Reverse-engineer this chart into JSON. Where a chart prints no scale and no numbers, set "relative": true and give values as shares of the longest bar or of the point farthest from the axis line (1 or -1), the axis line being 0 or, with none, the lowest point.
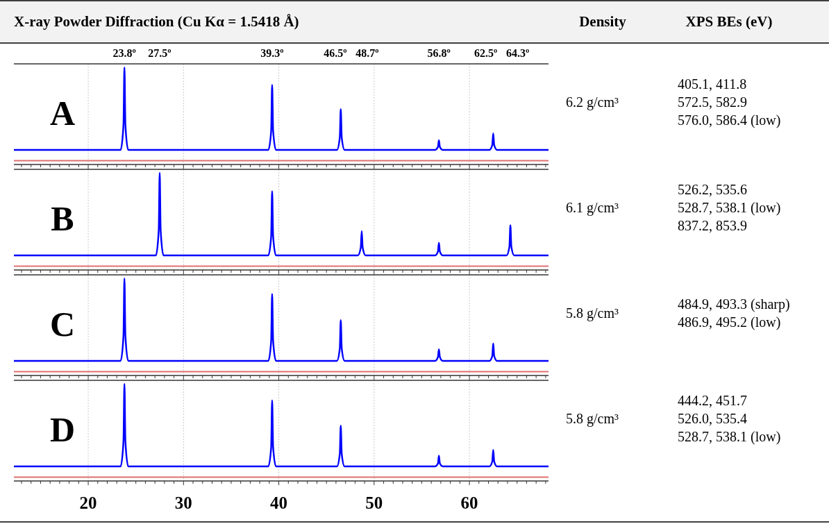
{
  "chart_data": [
    {
      "type": "other",
      "title": "X-ray Powder Diffraction (Cu Kα = 1.5418 Å)",
      "annotations": [
        "Density",
        "XPS BEs (eV)"
      ]
    },
    {
      "type": "line",
      "title": "A",
      "relative": true,
      "xlim": [
        12.2,
        68.3
      ],
      "xticks": [
        {
          "value": 13,
          "label": null
        },
        {
          "value": 14,
          "label": null
        },
        {
          "value": 15,
          "label": null
        },
        {
          "value": 16,
          "label": null
        },
        {
          "value": 17,
          "label": null
        },
        {
          "value": 18,
          "label": null
        },
        {
          "value": 19,
          "label": null
        },
        20,
        {
          "value": 21,
          "label": null
        },
        {
          "value": 22,
          "label": null
        },
        {
          "value": 23,
          "label": null
        },
        {
          "value": 24,
          "label": null
        },
        {
          "value": 25,
          "label": null
        },
        {
          "value": 26,
          "label": null
        },
        {
          "value": 27,
          "label": null
        },
        {
          "value": 28,
          "label": null
        },
        {
          "value": 29,
          "label": null
        },
        30,
        {
          "value": 31,
          "label": null
        },
        {
          "value": 32,
          "label": null
        },
        {
          "value": 33,
          "label": null
        },
        {
          "value": 34,
          "label": null
        },
        {
          "value": 35,
          "label": null
        },
        {
          "value": 36,
          "label": null
        },
        {
          "value": 37,
          "label": null
        },
        {
          "value": 38,
          "label": null
        },
        {
          "value": 39,
          "label": null
        },
        40,
        {
          "value": 41,
          "label": null
        },
        {
          "value": 42,
          "label": null
        },
        {
          "value": 43,
          "label": null
        },
        {
          "value": 44,
          "label": null
        },
        {
          "value": 45,
          "label": null
        },
        {
          "value": 46,
          "label": null
        },
        {
          "value": 47,
          "label": null
        },
        {
          "value": 48,
          "label": null
        },
        {
          "value": 49,
          "label": null
        },
        50,
        {
          "value": 51,
          "label": null
        },
        {
          "value": 52,
          "label": null
        },
        {
          "value": 53,
          "label": null
        },
        {
          "value": 54,
          "label": null
        },
        {
          "value": 55,
          "label": null
        },
        {
          "value": 56,
          "label": null
        },
        {
          "value": 57,
          "label": null
        },
        {
          "value": 58,
          "label": null
        },
        {
          "value": 59,
          "label": null
        },
        60,
        {
          "value": 61,
          "label": null
        },
        {
          "value": 62,
          "label": null
        },
        {
          "value": 63,
          "label": null
        },
        {
          "value": 64,
          "label": null
        },
        {
          "value": 65,
          "label": null
        },
        {
          "value": 66,
          "label": null
        },
        {
          "value": 67,
          "label": null
        },
        {
          "value": 68,
          "label": null
        }
      ],
      "tick_labels": false,
      "grid": "x",
      "x": [
        12.2,
        23.4,
        23.7,
        23.8,
        23.9,
        24.2,
        38.9,
        39.2,
        39.3,
        39.4,
        39.7,
        46.1,
        46.4,
        46.5,
        46.6,
        46.9,
        56.4,
        56.7,
        56.8,
        56.9,
        57.2,
        62.1,
        62.4,
        62.5,
        62.6,
        62.9,
        68.3
      ],
      "series": [
        {
          "color": "#0000ff",
          "values": [
            0.15,
            0.15,
            0.41,
            1,
            0.41,
            0.15,
            0.15,
            0.35,
            0.82,
            0.35,
            0.15,
            0.15,
            0.28,
            0.57,
            0.28,
            0.15,
            0.15,
            0.18,
            0.25,
            0.18,
            0.15,
            0.15,
            0.2,
            0.32,
            0.2,
            0.15,
            0.15
          ]
        }
      ],
      "ref_lines": [
        {
          "axis": "y",
          "value": 0.04,
          "color": "#e07070"
        }
      ],
      "annotations": [
        "23.8º",
        "27.5º",
        "39.3º",
        "46.5º",
        "48.7º",
        "56.8º",
        "62.5º",
        "64.3º",
        "6.2 g/cm³",
        "405.1, 411.8",
        "572.5, 582.9",
        "576.0, 586.4 (low)"
      ]
    },
    {
      "type": "line",
      "title": "B",
      "relative": true,
      "xlim": [
        12.2,
        68.3
      ],
      "xticks": [
        {
          "value": 13,
          "label": null
        },
        {
          "value": 14,
          "label": null
        },
        {
          "value": 15,
          "label": null
        },
        {
          "value": 16,
          "label": null
        },
        {
          "value": 17,
          "label": null
        },
        {
          "value": 18,
          "label": null
        },
        {
          "value": 19,
          "label": null
        },
        20,
        {
          "value": 21,
          "label": null
        },
        {
          "value": 22,
          "label": null
        },
        {
          "value": 23,
          "label": null
        },
        {
          "value": 24,
          "label": null
        },
        {
          "value": 25,
          "label": null
        },
        {
          "value": 26,
          "label": null
        },
        {
          "value": 27,
          "label": null
        },
        {
          "value": 28,
          "label": null
        },
        {
          "value": 29,
          "label": null
        },
        30,
        {
          "value": 31,
          "label": null
        },
        {
          "value": 32,
          "label": null
        },
        {
          "value": 33,
          "label": null
        },
        {
          "value": 34,
          "label": null
        },
        {
          "value": 35,
          "label": null
        },
        {
          "value": 36,
          "label": null
        },
        {
          "value": 37,
          "label": null
        },
        {
          "value": 38,
          "label": null
        },
        {
          "value": 39,
          "label": null
        },
        40,
        {
          "value": 41,
          "label": null
        },
        {
          "value": 42,
          "label": null
        },
        {
          "value": 43,
          "label": null
        },
        {
          "value": 44,
          "label": null
        },
        {
          "value": 45,
          "label": null
        },
        {
          "value": 46,
          "label": null
        },
        {
          "value": 47,
          "label": null
        },
        {
          "value": 48,
          "label": null
        },
        {
          "value": 49,
          "label": null
        },
        50,
        {
          "value": 51,
          "label": null
        },
        {
          "value": 52,
          "label": null
        },
        {
          "value": 53,
          "label": null
        },
        {
          "value": 54,
          "label": null
        },
        {
          "value": 55,
          "label": null
        },
        {
          "value": 56,
          "label": null
        },
        {
          "value": 57,
          "label": null
        },
        {
          "value": 58,
          "label": null
        },
        {
          "value": 59,
          "label": null
        },
        60,
        {
          "value": 61,
          "label": null
        },
        {
          "value": 62,
          "label": null
        },
        {
          "value": 63,
          "label": null
        },
        {
          "value": 64,
          "label": null
        },
        {
          "value": 65,
          "label": null
        },
        {
          "value": 66,
          "label": null
        },
        {
          "value": 67,
          "label": null
        },
        {
          "value": 68,
          "label": null
        }
      ],
      "tick_labels": false,
      "grid": "x",
      "x": [
        12.2,
        27.1,
        27.4,
        27.5,
        27.6,
        27.9,
        38.9,
        39.2,
        39.3,
        39.4,
        39.7,
        48.3,
        48.6,
        48.7,
        48.8,
        49.1,
        56.4,
        56.7,
        56.8,
        56.9,
        57.2,
        63.9,
        64.2,
        64.3,
        64.4,
        64.7,
        68.3
      ],
      "series": [
        {
          "color": "#0000ff",
          "values": [
            0.15,
            0.15,
            0.41,
            1,
            0.41,
            0.15,
            0.15,
            0.35,
            0.81,
            0.35,
            0.15,
            0.15,
            0.23,
            0.4,
            0.23,
            0.15,
            0.15,
            0.19,
            0.28,
            0.19,
            0.15,
            0.15,
            0.24,
            0.46,
            0.24,
            0.15,
            0.15
          ]
        }
      ],
      "ref_lines": [
        {
          "axis": "y",
          "value": 0.04,
          "color": "#e07070"
        }
      ],
      "annotations": [
        "6.1 g/cm³",
        "526.2, 535.6",
        "528.7, 538.1 (low)",
        "837.2, 853.9"
      ]
    },
    {
      "type": "line",
      "title": "C",
      "relative": true,
      "xlim": [
        12.2,
        68.3
      ],
      "xticks": [
        {
          "value": 13,
          "label": null
        },
        {
          "value": 14,
          "label": null
        },
        {
          "value": 15,
          "label": null
        },
        {
          "value": 16,
          "label": null
        },
        {
          "value": 17,
          "label": null
        },
        {
          "value": 18,
          "label": null
        },
        {
          "value": 19,
          "label": null
        },
        20,
        {
          "value": 21,
          "label": null
        },
        {
          "value": 22,
          "label": null
        },
        {
          "value": 23,
          "label": null
        },
        {
          "value": 24,
          "label": null
        },
        {
          "value": 25,
          "label": null
        },
        {
          "value": 26,
          "label": null
        },
        {
          "value": 27,
          "label": null
        },
        {
          "value": 28,
          "label": null
        },
        {
          "value": 29,
          "label": null
        },
        30,
        {
          "value": 31,
          "label": null
        },
        {
          "value": 32,
          "label": null
        },
        {
          "value": 33,
          "label": null
        },
        {
          "value": 34,
          "label": null
        },
        {
          "value": 35,
          "label": null
        },
        {
          "value": 36,
          "label": null
        },
        {
          "value": 37,
          "label": null
        },
        {
          "value": 38,
          "label": null
        },
        {
          "value": 39,
          "label": null
        },
        40,
        {
          "value": 41,
          "label": null
        },
        {
          "value": 42,
          "label": null
        },
        {
          "value": 43,
          "label": null
        },
        {
          "value": 44,
          "label": null
        },
        {
          "value": 45,
          "label": null
        },
        {
          "value": 46,
          "label": null
        },
        {
          "value": 47,
          "label": null
        },
        {
          "value": 48,
          "label": null
        },
        {
          "value": 49,
          "label": null
        },
        50,
        {
          "value": 51,
          "label": null
        },
        {
          "value": 52,
          "label": null
        },
        {
          "value": 53,
          "label": null
        },
        {
          "value": 54,
          "label": null
        },
        {
          "value": 55,
          "label": null
        },
        {
          "value": 56,
          "label": null
        },
        {
          "value": 57,
          "label": null
        },
        {
          "value": 58,
          "label": null
        },
        {
          "value": 59,
          "label": null
        },
        60,
        {
          "value": 61,
          "label": null
        },
        {
          "value": 62,
          "label": null
        },
        {
          "value": 63,
          "label": null
        },
        {
          "value": 64,
          "label": null
        },
        {
          "value": 65,
          "label": null
        },
        {
          "value": 66,
          "label": null
        },
        {
          "value": 67,
          "label": null
        },
        {
          "value": 68,
          "label": null
        }
      ],
      "tick_labels": false,
      "grid": "x",
      "x": [
        12.2,
        23.4,
        23.7,
        23.8,
        23.9,
        24.2,
        38.9,
        39.2,
        39.3,
        39.4,
        39.7,
        46.1,
        46.4,
        46.5,
        46.6,
        46.9,
        56.4,
        56.7,
        56.8,
        56.9,
        57.2,
        62.1,
        62.4,
        62.5,
        62.6,
        62.9,
        68.3
      ],
      "series": [
        {
          "color": "#0000ff",
          "values": [
            0.15,
            0.15,
            0.41,
            1,
            0.41,
            0.15,
            0.15,
            0.36,
            0.84,
            0.36,
            0.15,
            0.15,
            0.28,
            0.57,
            0.28,
            0.15,
            0.15,
            0.19,
            0.27,
            0.19,
            0.15,
            0.15,
            0.2,
            0.33,
            0.2,
            0.15,
            0.15
          ]
        }
      ],
      "ref_lines": [
        {
          "axis": "y",
          "value": 0.04,
          "color": "#e07070"
        }
      ],
      "annotations": [
        "5.8 g/cm³",
        "484.9, 493.3 (sharp)",
        "486.9, 495.2 (low)"
      ]
    },
    {
      "type": "line",
      "title": "D",
      "relative": true,
      "xlim": [
        12.2,
        68.3
      ],
      "xticks": [
        {
          "value": 13,
          "label": null
        },
        {
          "value": 14,
          "label": null
        },
        {
          "value": 15,
          "label": null
        },
        {
          "value": 16,
          "label": null
        },
        {
          "value": 17,
          "label": null
        },
        {
          "value": 18,
          "label": null
        },
        {
          "value": 19,
          "label": null
        },
        20,
        {
          "value": 21,
          "label": null
        },
        {
          "value": 22,
          "label": null
        },
        {
          "value": 23,
          "label": null
        },
        {
          "value": 24,
          "label": null
        },
        {
          "value": 25,
          "label": null
        },
        {
          "value": 26,
          "label": null
        },
        {
          "value": 27,
          "label": null
        },
        {
          "value": 28,
          "label": null
        },
        {
          "value": 29,
          "label": null
        },
        30,
        {
          "value": 31,
          "label": null
        },
        {
          "value": 32,
          "label": null
        },
        {
          "value": 33,
          "label": null
        },
        {
          "value": 34,
          "label": null
        },
        {
          "value": 35,
          "label": null
        },
        {
          "value": 36,
          "label": null
        },
        {
          "value": 37,
          "label": null
        },
        {
          "value": 38,
          "label": null
        },
        {
          "value": 39,
          "label": null
        },
        40,
        {
          "value": 41,
          "label": null
        },
        {
          "value": 42,
          "label": null
        },
        {
          "value": 43,
          "label": null
        },
        {
          "value": 44,
          "label": null
        },
        {
          "value": 45,
          "label": null
        },
        {
          "value": 46,
          "label": null
        },
        {
          "value": 47,
          "label": null
        },
        {
          "value": 48,
          "label": null
        },
        {
          "value": 49,
          "label": null
        },
        50,
        {
          "value": 51,
          "label": null
        },
        {
          "value": 52,
          "label": null
        },
        {
          "value": 53,
          "label": null
        },
        {
          "value": 54,
          "label": null
        },
        {
          "value": 55,
          "label": null
        },
        {
          "value": 56,
          "label": null
        },
        {
          "value": 57,
          "label": null
        },
        {
          "value": 58,
          "label": null
        },
        {
          "value": 59,
          "label": null
        },
        60,
        {
          "value": 61,
          "label": null
        },
        {
          "value": 62,
          "label": null
        },
        {
          "value": 63,
          "label": null
        },
        {
          "value": 64,
          "label": null
        },
        {
          "value": 65,
          "label": null
        },
        {
          "value": 66,
          "label": null
        },
        {
          "value": 67,
          "label": null
        },
        {
          "value": 68,
          "label": null
        }
      ],
      "tick_labels": "x",
      "grid": "x",
      "x": [
        12.2,
        23.4,
        23.7,
        23.8,
        23.9,
        24.2,
        38.9,
        39.2,
        39.3,
        39.4,
        39.7,
        46.1,
        46.4,
        46.5,
        46.6,
        46.9,
        56.4,
        56.7,
        56.8,
        56.9,
        57.2,
        62.1,
        62.4,
        62.5,
        62.6,
        62.9,
        68.3
      ],
      "series": [
        {
          "color": "#0000ff",
          "values": [
            0.15,
            0.15,
            0.41,
            1,
            0.41,
            0.15,
            0.15,
            0.35,
            0.83,
            0.35,
            0.15,
            0.15,
            0.28,
            0.57,
            0.28,
            0.15,
            0.15,
            0.18,
            0.26,
            0.18,
            0.15,
            0.15,
            0.2,
            0.32,
            0.2,
            0.15,
            0.15
          ]
        }
      ],
      "ref_lines": [
        {
          "axis": "y",
          "value": 0.04,
          "color": "#e07070"
        }
      ],
      "annotations": [
        "5.8 g/cm³",
        "444.2, 451.7",
        "526.0, 535.4",
        "528.7, 538.1 (low)"
      ]
    }
  ]
}
